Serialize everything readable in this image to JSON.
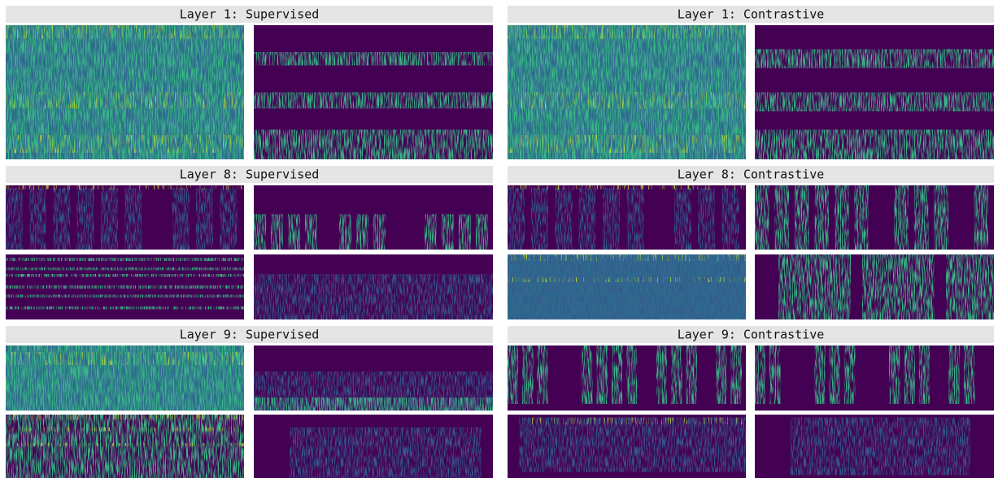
{
  "panels": [
    {
      "title": "Layer 1: Supervised"
    },
    {
      "title": "Layer 1: Contrastive"
    },
    {
      "title": "Layer 8: Supervised"
    },
    {
      "title": "Layer 8: Contrastive"
    },
    {
      "title": "Layer 9: Supervised"
    },
    {
      "title": "Layer 9: Contrastive"
    }
  ]
}
